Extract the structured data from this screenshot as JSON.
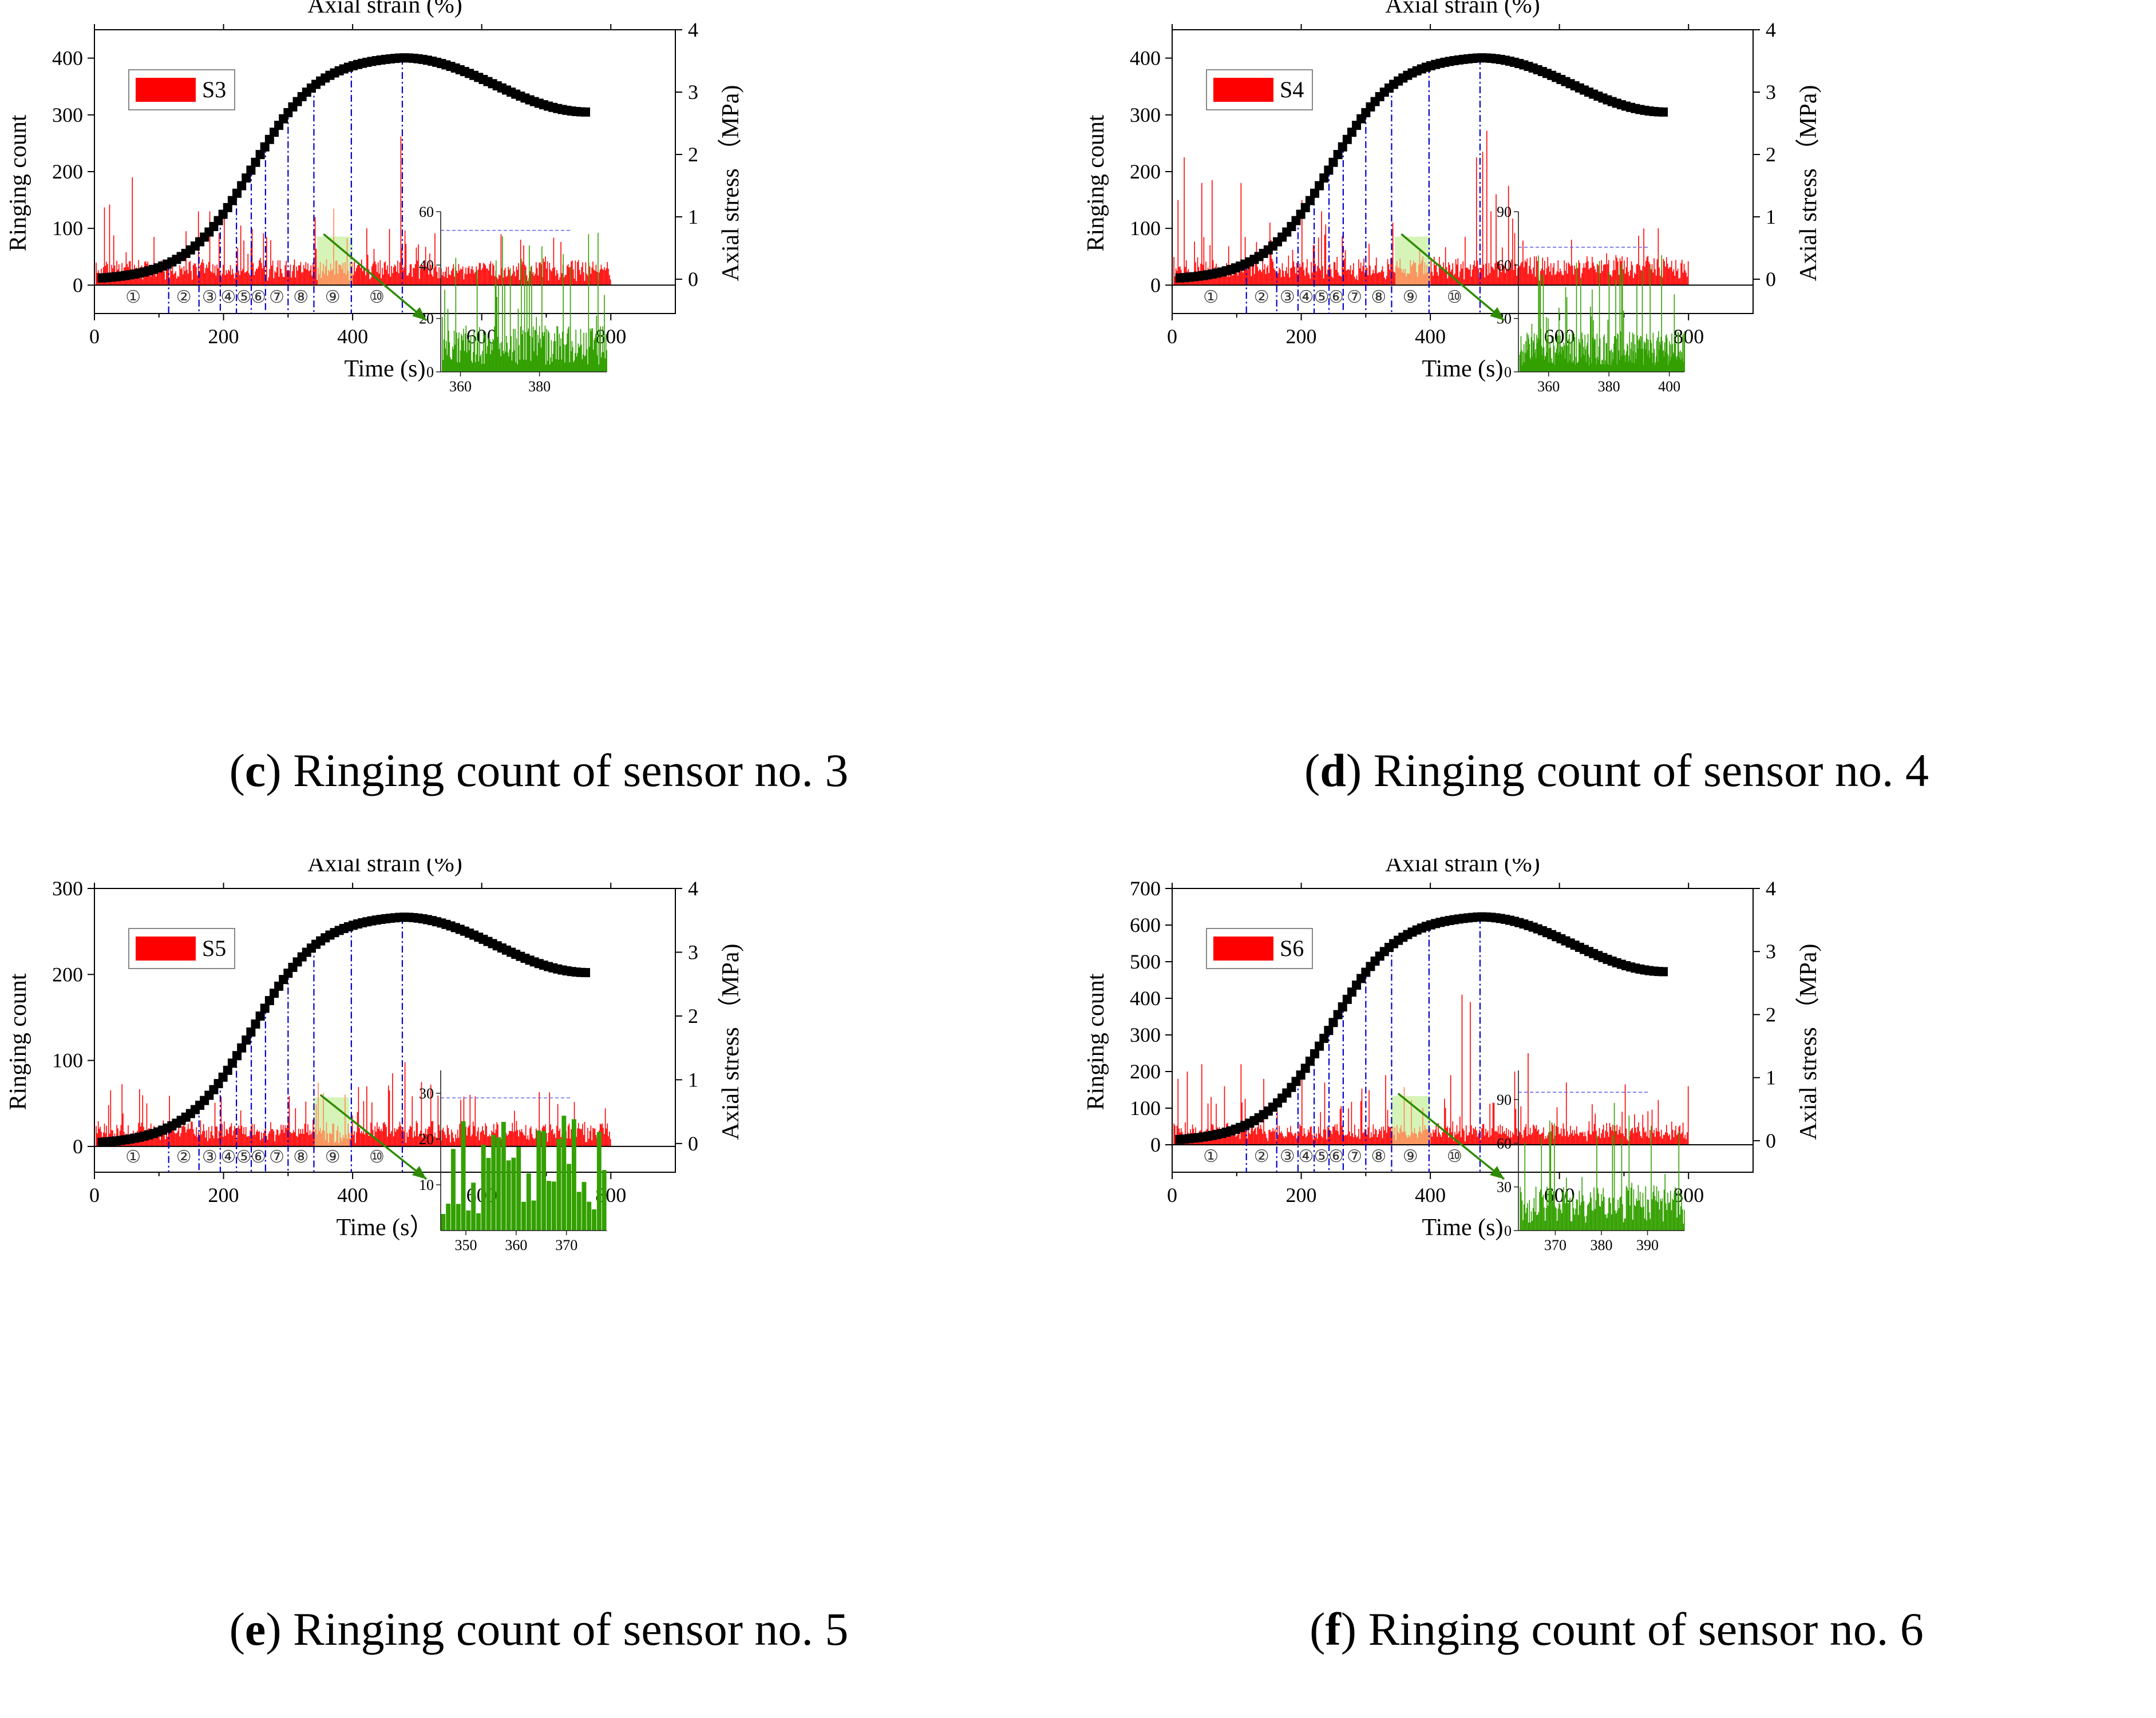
{
  "figure": {
    "panels": [
      {
        "id": "c",
        "sensor": "S3",
        "caption_letter": "c",
        "caption_text": "Ringing count of sensor no. 3"
      },
      {
        "id": "d",
        "sensor": "S4",
        "caption_letter": "d",
        "caption_text": "Ringing count of sensor no. 4"
      },
      {
        "id": "e",
        "sensor": "S5",
        "caption_letter": "e",
        "caption_text": "Ringing count of sensor no. 5"
      },
      {
        "id": "f",
        "sensor": "S6",
        "caption_letter": "f",
        "caption_text": "Ringing count of sensor no. 6"
      }
    ]
  },
  "colors": {
    "bars": "#ff0000",
    "stress": "#000000",
    "stage_lines": "#0000cc",
    "inset_bars": "#33a000",
    "arrow": "#2e8b00",
    "highlight": "#c8f0a0"
  },
  "chart_data": [
    {
      "type": "bar",
      "panel": "c",
      "top_axis_label": "Axial strain (%)",
      "xlabel": "Time (s)",
      "ylabel": "Ringing count",
      "y2label": "Axial stress （MPa)",
      "legend": "S3",
      "xlim": [
        0,
        900
      ],
      "ylim": [
        -50,
        450
      ],
      "y2lim": [
        -0.55,
        4
      ],
      "xticks": [
        0,
        200,
        400,
        600,
        800
      ],
      "yticks": [
        0,
        100,
        200,
        300,
        400
      ],
      "y2ticks": [
        0,
        1,
        2,
        3,
        4
      ],
      "stage_boundaries": [
        115,
        162,
        195,
        220,
        243,
        265,
        300,
        340,
        398,
        477
      ],
      "stage_labels": [
        "①",
        "②",
        "③",
        "④",
        "⑤",
        "⑥",
        "⑦",
        "⑧",
        "⑨",
        "⑩"
      ],
      "highlight_range": [
        345,
        400
      ],
      "series_bars": {
        "x_end": 800,
        "baseline": 35,
        "noise": 30,
        "seed": 3,
        "spikes": [
          [
            15,
            137
          ],
          [
            22,
            142
          ],
          [
            48,
            58
          ],
          [
            58,
            190
          ],
          [
            140,
            95
          ],
          [
            160,
            130
          ],
          [
            178,
            130
          ],
          [
            200,
            142
          ],
          [
            225,
            105
          ],
          [
            340,
            120
          ],
          [
            370,
            135
          ],
          [
            420,
            100
          ],
          [
            474,
            262
          ]
        ]
      },
      "series_stress": {
        "peak_time": 477,
        "peak_stress": 3.55,
        "end_time": 765,
        "end_stress": 2.68,
        "start_time": 12,
        "start_stress": 0.02
      },
      "inset": {
        "xlim": [
          355,
          397
        ],
        "ylim": [
          0,
          60
        ],
        "xticks": [
          360,
          380
        ],
        "yticks": [
          0,
          20,
          40,
          60
        ],
        "dash_level": 53,
        "seed": 31
      }
    },
    {
      "type": "bar",
      "panel": "d",
      "top_axis_label": "Axial strain (%)",
      "xlabel": "Time (s)",
      "ylabel": "Ringing count",
      "y2label": "Axial stress （MPa)",
      "legend": "S4",
      "xlim": [
        0,
        900
      ],
      "ylim": [
        -50,
        450
      ],
      "y2lim": [
        -0.55,
        4
      ],
      "xticks": [
        0,
        200,
        400,
        600,
        800
      ],
      "yticks": [
        0,
        100,
        200,
        300,
        400
      ],
      "y2ticks": [
        0,
        1,
        2,
        3,
        4
      ],
      "stage_boundaries": [
        115,
        162,
        195,
        220,
        243,
        265,
        300,
        340,
        398,
        477
      ],
      "stage_labels": [
        "①",
        "②",
        "③",
        "④",
        "⑤",
        "⑥",
        "⑦",
        "⑧",
        "⑨",
        "⑩"
      ],
      "highlight_range": [
        345,
        400
      ],
      "series_bars": {
        "x_end": 800,
        "baseline": 38,
        "noise": 32,
        "seed": 4,
        "spikes": [
          [
            8,
            150
          ],
          [
            18,
            225
          ],
          [
            45,
            180
          ],
          [
            60,
            185
          ],
          [
            105,
            180
          ],
          [
            150,
            110
          ],
          [
            200,
            150
          ],
          [
            230,
            130
          ],
          [
            340,
            110
          ],
          [
            470,
            225
          ],
          [
            480,
            235
          ],
          [
            486,
            272
          ],
          [
            492,
            130
          ],
          [
            500,
            160
          ],
          [
            520,
            175
          ],
          [
            730,
            100
          ]
        ]
      },
      "series_stress": {
        "peak_time": 477,
        "peak_stress": 3.55,
        "end_time": 765,
        "end_stress": 2.68,
        "start_time": 12,
        "start_stress": 0.02
      },
      "inset": {
        "xlim": [
          350,
          405
        ],
        "ylim": [
          0,
          90
        ],
        "xticks": [
          360,
          380,
          400
        ],
        "yticks": [
          0,
          30,
          60,
          90
        ],
        "dash_level": 70,
        "seed": 41
      }
    },
    {
      "type": "bar",
      "panel": "e",
      "top_axis_label": "Axial strain (%)",
      "xlabel": "Time (s）",
      "ylabel": "Ringing count",
      "y2label": "Axial stress （MPa)",
      "legend": "S5",
      "xlim": [
        0,
        900
      ],
      "ylim": [
        -30,
        300
      ],
      "y2lim": [
        -0.45,
        4
      ],
      "xticks": [
        0,
        200,
        400,
        600,
        800
      ],
      "yticks": [
        0,
        100,
        200,
        300
      ],
      "y2ticks": [
        0,
        1,
        2,
        3,
        4
      ],
      "stage_boundaries": [
        115,
        162,
        195,
        220,
        243,
        265,
        300,
        340,
        398,
        477
      ],
      "stage_labels": [
        "①",
        "②",
        "③",
        "④",
        "⑤",
        "⑥",
        "⑦",
        "⑧",
        "⑨",
        "⑩"
      ],
      "highlight_range": [
        340,
        395
      ],
      "series_bars": {
        "x_end": 800,
        "baseline": 22,
        "noise": 22,
        "seed": 5,
        "spikes": [
          [
            20,
            48
          ],
          [
            80,
            50
          ],
          [
            195,
            58
          ],
          [
            420,
            70
          ],
          [
            460,
            85
          ],
          [
            480,
            98
          ],
          [
            505,
            75
          ],
          [
            580,
            60
          ]
        ]
      },
      "series_stress": {
        "peak_time": 477,
        "peak_stress": 3.55,
        "end_time": 765,
        "end_stress": 2.68,
        "start_time": 12,
        "start_stress": 0.02
      },
      "inset": {
        "xlim": [
          345,
          378
        ],
        "ylim": [
          0,
          35
        ],
        "xticks": [
          350,
          360,
          370
        ],
        "yticks": [
          10,
          20,
          30
        ],
        "dash_level": 29,
        "seed": 51,
        "dense": false
      }
    },
    {
      "type": "bar",
      "panel": "f",
      "top_axis_label": "Axial strain (%)",
      "xlabel": "Time (s)",
      "ylabel": "Ringing count",
      "y2label": "Axial stress （MPa)",
      "legend": "S6",
      "xlim": [
        0,
        900
      ],
      "ylim": [
        -75,
        700
      ],
      "y2lim": [
        -0.5,
        4
      ],
      "xticks": [
        0,
        200,
        400,
        600,
        800
      ],
      "yticks": [
        0,
        100,
        200,
        300,
        400,
        500,
        600,
        700
      ],
      "y2ticks": [
        0,
        1,
        2,
        3,
        4
      ],
      "stage_boundaries": [
        115,
        162,
        195,
        220,
        243,
        265,
        300,
        340,
        398,
        477
      ],
      "stage_labels": [
        "①",
        "②",
        "③",
        "④",
        "⑤",
        "⑥",
        "⑦",
        "⑧",
        "⑨",
        "⑩"
      ],
      "highlight_range": [
        340,
        400
      ],
      "series_bars": {
        "x_end": 800,
        "baseline": 45,
        "noise": 45,
        "seed": 6,
        "spikes": [
          [
            8,
            180
          ],
          [
            22,
            200
          ],
          [
            45,
            220
          ],
          [
            80,
            160
          ],
          [
            105,
            220
          ],
          [
            140,
            180
          ],
          [
            200,
            190
          ],
          [
            235,
            170
          ],
          [
            330,
            190
          ],
          [
            430,
            190
          ],
          [
            448,
            410
          ],
          [
            460,
            390
          ],
          [
            530,
            200
          ],
          [
            550,
            250
          ],
          [
            610,
            170
          ],
          [
            700,
            165
          ],
          [
            798,
            160
          ]
        ]
      },
      "series_stress": {
        "peak_time": 477,
        "peak_stress": 3.55,
        "end_time": 765,
        "end_stress": 2.68,
        "start_time": 12,
        "start_stress": 0.02
      },
      "inset": {
        "xlim": [
          362,
          398
        ],
        "ylim": [
          0,
          110
        ],
        "xticks": [
          370,
          380,
          390
        ],
        "yticks": [
          0,
          30,
          60,
          90
        ],
        "dash_level": 95,
        "seed": 61
      }
    }
  ]
}
